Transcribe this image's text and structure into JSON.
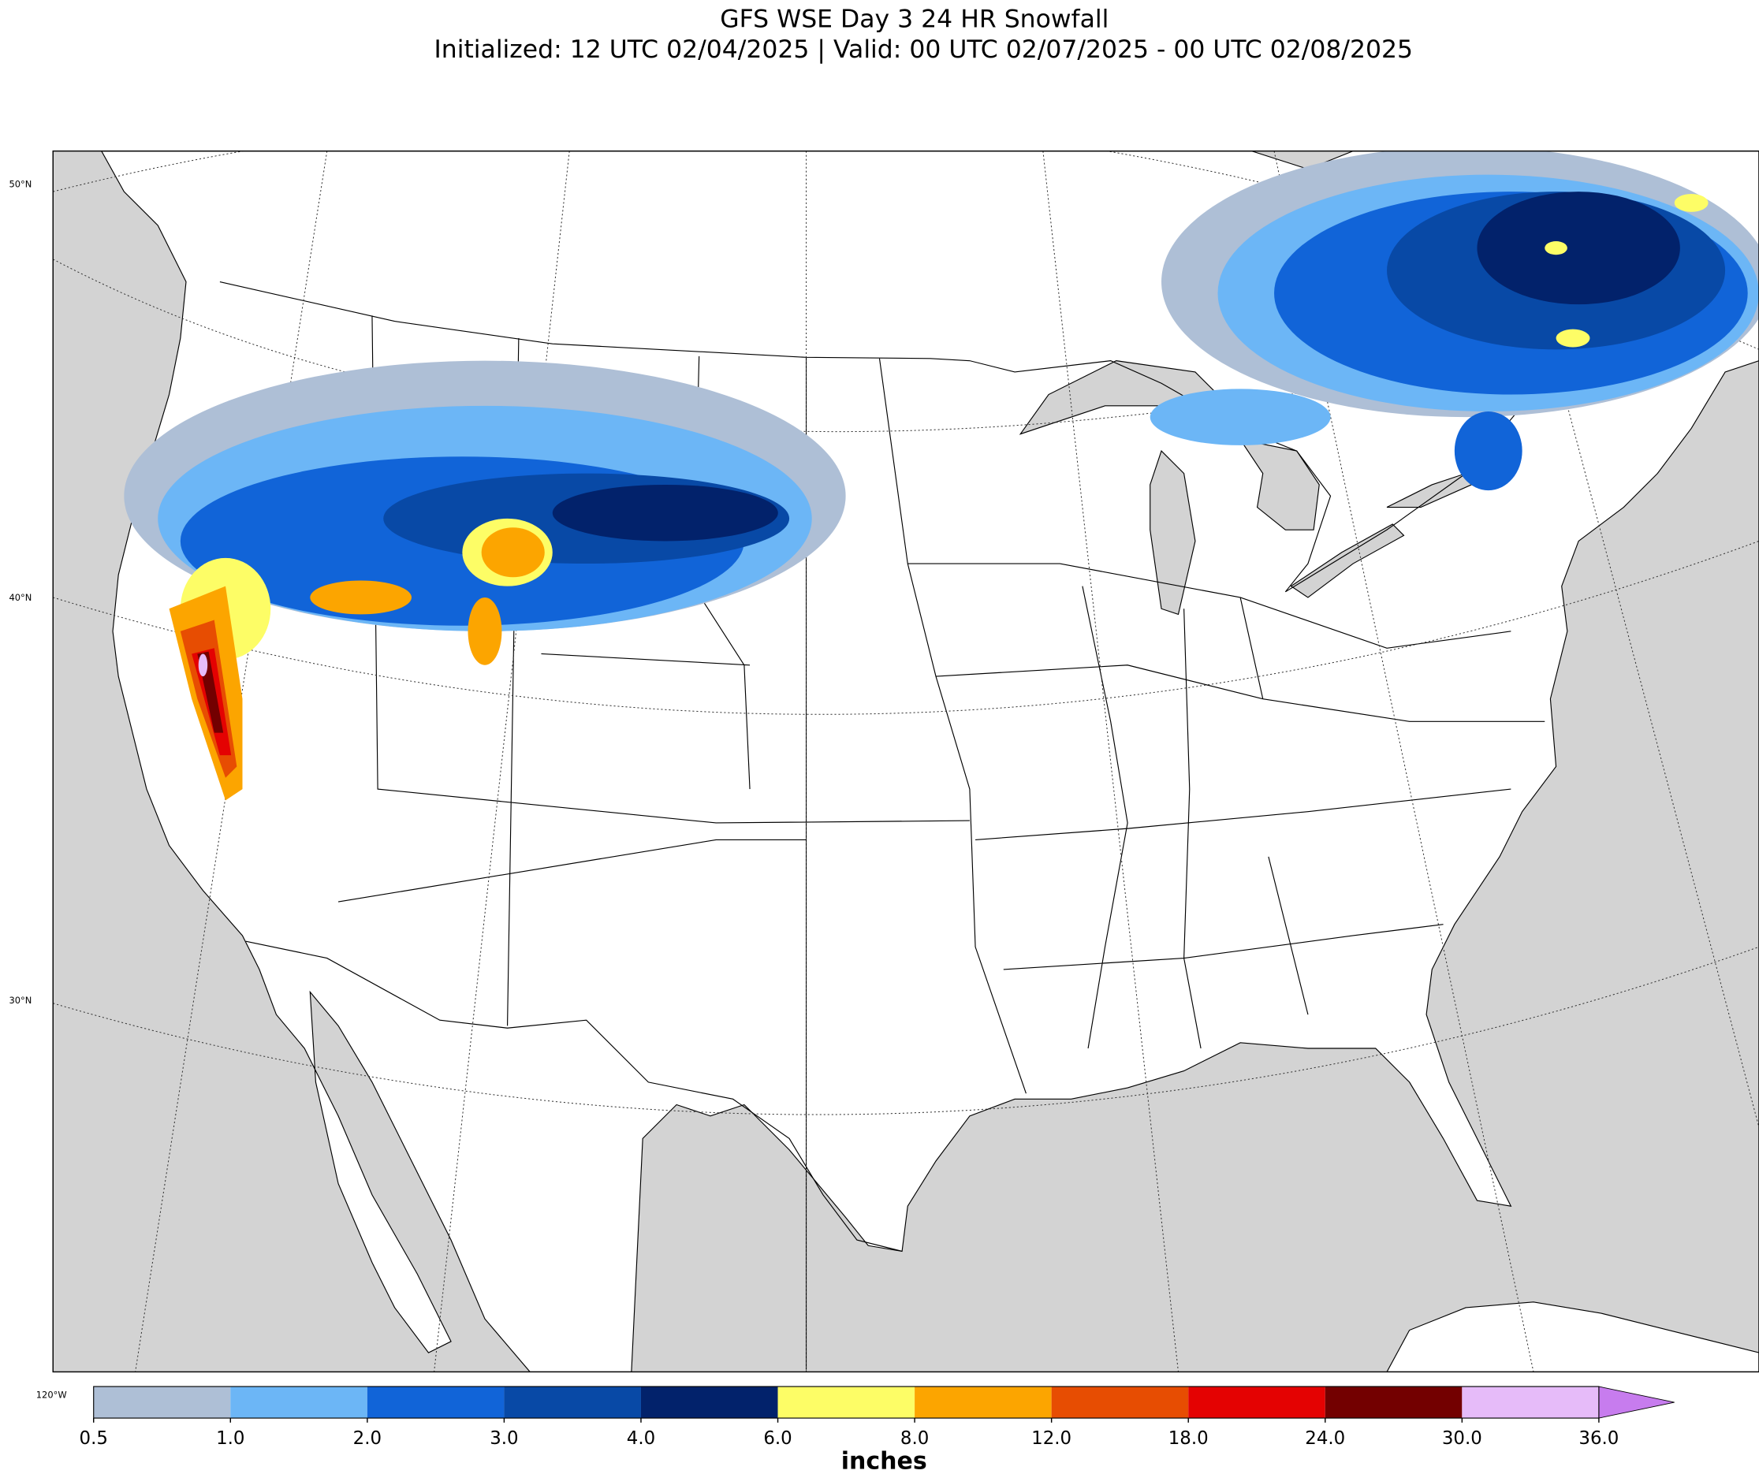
{
  "map": {
    "title": "GFS WSE Day 3 24 HR Snowfall",
    "subtitle": "Initialized: 12 UTC 02/04/2025 | Valid: 00 UTC 02/07/2025 - 00 UTC 02/08/2025",
    "lat_labels": [
      "50°N",
      "40°N",
      "30°N"
    ],
    "lon_label": "120°W",
    "colorbar": {
      "label": "inches",
      "ticks": [
        {
          "value": 0.5,
          "label": "0.5"
        },
        {
          "value": 1,
          "label": "1.0"
        },
        {
          "value": 2,
          "label": "2.0"
        },
        {
          "value": 3,
          "label": "3.0"
        },
        {
          "value": 4,
          "label": "4.0"
        },
        {
          "value": 6,
          "label": "6.0"
        },
        {
          "value": 8,
          "label": "8.0"
        },
        {
          "value": 12,
          "label": "12.0"
        },
        {
          "value": 18,
          "label": "18.0"
        },
        {
          "value": 24,
          "label": "24.0"
        },
        {
          "value": 30,
          "label": "30.0"
        },
        {
          "value": 36,
          "label": "36.0"
        }
      ],
      "colors": [
        "#aebfd6",
        "#6cb6f6",
        "#1164d8",
        "#0849a6",
        "#02226b",
        "#fdfd66",
        "#fca500",
        "#e74d02",
        "#e40202",
        "#730000",
        "#e6bbf9"
      ],
      "extend_color": "#c77cee"
    }
  }
}
